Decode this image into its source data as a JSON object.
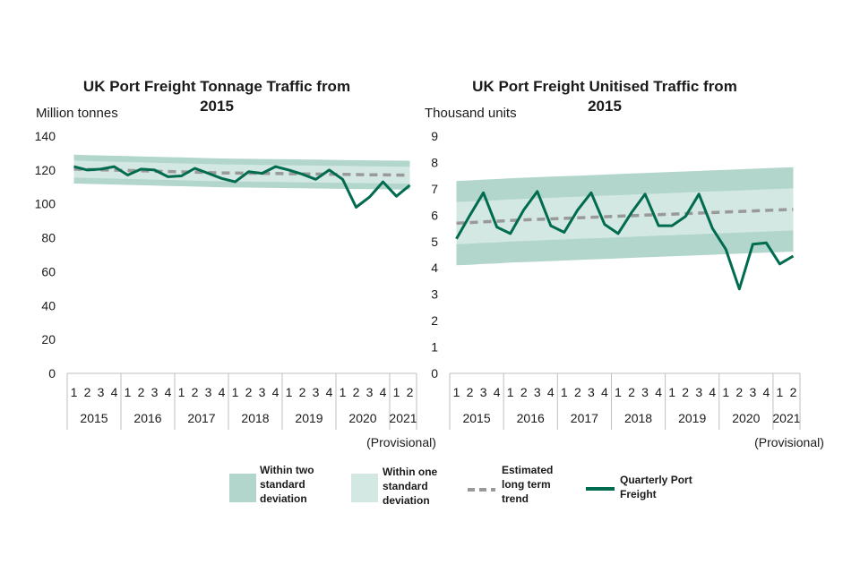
{
  "colors": {
    "band_two_sd": "#b2d6cc",
    "band_one_sd": "#d3e8e2",
    "trend": "#999999",
    "quarterly": "#006b4f",
    "axis": "#bfbfbf"
  },
  "chart_data": [
    {
      "type": "line",
      "title_line1": "UK Port Freight Tonnage Traffic from",
      "title_line2": "2015",
      "ylabel": "Million tonnes",
      "ylim": [
        0,
        140
      ],
      "yticks": [
        "0",
        "20",
        "40",
        "60",
        "80",
        "100",
        "120",
        "140"
      ],
      "quarters": [
        "1",
        "2",
        "3",
        "4",
        "1",
        "2",
        "3",
        "4",
        "1",
        "2",
        "3",
        "4",
        "1",
        "2",
        "3",
        "4",
        "1",
        "2",
        "3",
        "4",
        "1",
        "2",
        "3",
        "4",
        "1",
        "2"
      ],
      "years": [
        {
          "label": "2015",
          "quarters": 4
        },
        {
          "label": "2016",
          "quarters": 4
        },
        {
          "label": "2017",
          "quarters": 4
        },
        {
          "label": "2018",
          "quarters": 4
        },
        {
          "label": "2019",
          "quarters": 4
        },
        {
          "label": "2020",
          "quarters": 4
        },
        {
          "label": "2021",
          "quarters": 2
        }
      ],
      "provisional_note": "(Provisional)",
      "series": [
        {
          "name": "Quarterly Port Freight",
          "values": [
            122,
            120,
            120.5,
            122,
            117,
            120.5,
            120,
            116,
            116.5,
            121,
            118,
            115,
            113,
            119,
            118,
            122,
            120,
            117.5,
            114.5,
            120,
            114.5,
            98,
            104,
            113,
            104.5,
            111
          ]
        },
        {
          "name": "Estimated long term trend",
          "values": [
            120.5,
            120.3,
            120.1,
            119.9,
            119.7,
            119.5,
            119.3,
            119.1,
            118.9,
            118.7,
            118.5,
            118.3,
            118.2,
            118.1,
            118,
            117.9,
            117.8,
            117.7,
            117.6,
            117.5,
            117.4,
            117.3,
            117.2,
            117.1,
            117.0,
            116.9
          ]
        },
        {
          "name": "Within one standard deviation",
          "lower": [
            115.5,
            115.3,
            115.1,
            114.9,
            114.7,
            114.5,
            114.3,
            114.1,
            113.9,
            113.7,
            113.5,
            113.3,
            113.2,
            113.1,
            113,
            112.9,
            112.8,
            112.7,
            112.6,
            112.5,
            112.4,
            112.3,
            112.2,
            112.1,
            112.0,
            111.9
          ],
          "upper": [
            125.5,
            125.3,
            125.1,
            124.9,
            124.7,
            124.5,
            124.3,
            124.1,
            123.9,
            123.7,
            123.5,
            123.3,
            123.2,
            123.1,
            123,
            122.9,
            122.8,
            122.7,
            122.6,
            122.5,
            122.4,
            122.3,
            122.2,
            122.1,
            122.0,
            121.9
          ]
        },
        {
          "name": "Within two standard deviation",
          "lower": [
            112,
            111.8,
            111.6,
            111.4,
            111.2,
            111,
            110.8,
            110.6,
            110.4,
            110.2,
            110,
            109.8,
            109.7,
            109.6,
            109.5,
            109.4,
            109.3,
            109.2,
            109.1,
            109,
            108.9,
            108.8,
            108.7,
            108.6,
            108.5,
            108.4
          ],
          "upper": [
            129,
            128.8,
            128.6,
            128.4,
            128.2,
            128,
            127.8,
            127.6,
            127.4,
            127.2,
            127,
            126.8,
            126.7,
            126.6,
            126.5,
            126.4,
            126.3,
            126.2,
            126.1,
            126,
            125.9,
            125.8,
            125.7,
            125.6,
            125.5,
            125.4
          ]
        }
      ]
    },
    {
      "type": "line",
      "title_line1": "UK Port Freight Unitised Traffic from",
      "title_line2": "2015",
      "ylabel": "Thousand units",
      "ylim": [
        0,
        9
      ],
      "yticks": [
        "0",
        "1",
        "2",
        "3",
        "4",
        "5",
        "6",
        "7",
        "8",
        "9"
      ],
      "quarters": [
        "1",
        "2",
        "3",
        "4",
        "1",
        "2",
        "3",
        "4",
        "1",
        "2",
        "3",
        "4",
        "1",
        "2",
        "3",
        "4",
        "1",
        "2",
        "3",
        "4",
        "1",
        "2",
        "3",
        "4",
        "1",
        "2"
      ],
      "years": [
        {
          "label": "2015",
          "quarters": 4
        },
        {
          "label": "2016",
          "quarters": 4
        },
        {
          "label": "2017",
          "quarters": 4
        },
        {
          "label": "2018",
          "quarters": 4
        },
        {
          "label": "2019",
          "quarters": 4
        },
        {
          "label": "2020",
          "quarters": 4
        },
        {
          "label": "2021",
          "quarters": 2
        }
      ],
      "provisional_note": "(Provisional)",
      "series": [
        {
          "name": "Quarterly Port Freight",
          "values": [
            5.1,
            6.0,
            6.85,
            5.55,
            5.3,
            6.2,
            6.9,
            5.6,
            5.35,
            6.2,
            6.85,
            5.65,
            5.3,
            6.1,
            6.8,
            5.6,
            5.6,
            5.95,
            6.8,
            5.5,
            4.7,
            3.2,
            4.9,
            4.95,
            4.15,
            4.45
          ]
        },
        {
          "name": "Estimated long term trend",
          "values": [
            5.7,
            5.72,
            5.75,
            5.77,
            5.8,
            5.82,
            5.84,
            5.86,
            5.88,
            5.9,
            5.92,
            5.94,
            5.96,
            5.98,
            6.0,
            6.02,
            6.04,
            6.06,
            6.08,
            6.1,
            6.12,
            6.14,
            6.16,
            6.18,
            6.2,
            6.22
          ]
        },
        {
          "name": "Within one standard deviation",
          "lower": [
            4.9,
            4.92,
            4.95,
            4.97,
            5.0,
            5.02,
            5.04,
            5.06,
            5.08,
            5.1,
            5.12,
            5.14,
            5.16,
            5.18,
            5.2,
            5.22,
            5.24,
            5.26,
            5.28,
            5.3,
            5.32,
            5.34,
            5.36,
            5.38,
            5.4,
            5.42
          ],
          "upper": [
            6.5,
            6.52,
            6.55,
            6.57,
            6.6,
            6.62,
            6.64,
            6.66,
            6.68,
            6.7,
            6.72,
            6.74,
            6.76,
            6.78,
            6.8,
            6.82,
            6.84,
            6.86,
            6.88,
            6.9,
            6.92,
            6.94,
            6.96,
            6.98,
            7.0,
            7.02
          ]
        },
        {
          "name": "Within two standard deviation",
          "lower": [
            4.1,
            4.12,
            4.15,
            4.17,
            4.2,
            4.22,
            4.24,
            4.26,
            4.28,
            4.3,
            4.32,
            4.34,
            4.36,
            4.38,
            4.4,
            4.42,
            4.44,
            4.46,
            4.48,
            4.5,
            4.52,
            4.54,
            4.56,
            4.58,
            4.6,
            4.62
          ],
          "upper": [
            7.3,
            7.32,
            7.35,
            7.37,
            7.4,
            7.42,
            7.44,
            7.46,
            7.48,
            7.5,
            7.52,
            7.54,
            7.56,
            7.58,
            7.6,
            7.62,
            7.64,
            7.66,
            7.68,
            7.7,
            7.72,
            7.74,
            7.76,
            7.78,
            7.8,
            7.82
          ]
        }
      ]
    }
  ],
  "legend": {
    "two_sd": [
      "Within two",
      "standard",
      "deviation"
    ],
    "one_sd": [
      "Within one",
      "standard",
      "deviation"
    ],
    "trend": [
      "Estimated",
      "long term",
      "trend"
    ],
    "quarterly": [
      "Quarterly Port",
      "Freight"
    ]
  }
}
